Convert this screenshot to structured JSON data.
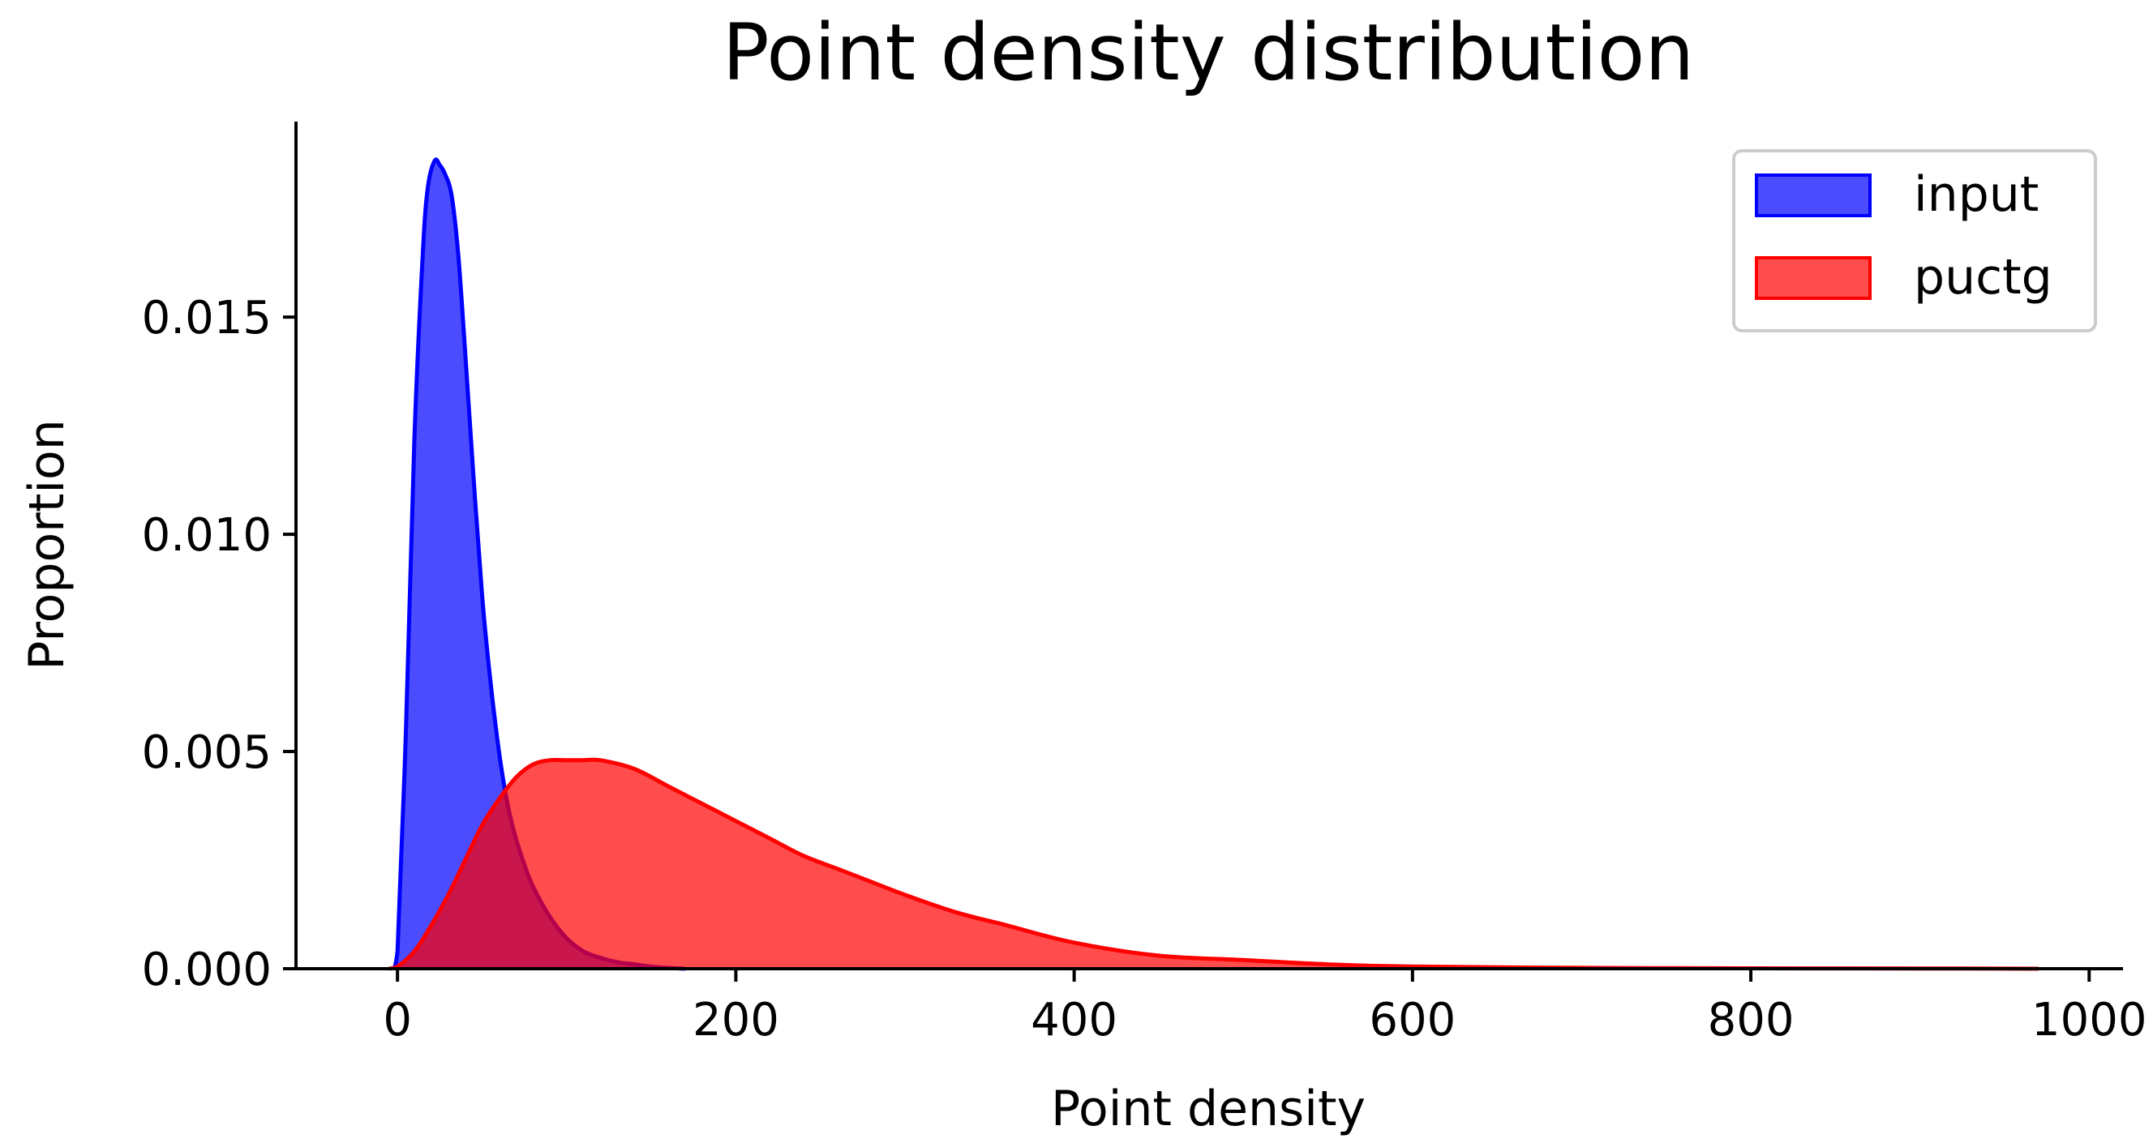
{
  "chart_data": {
    "type": "area",
    "title": "Point density distribution",
    "xlabel": "Point density",
    "ylabel": "Proportion",
    "xlim": [
      -60,
      1020
    ],
    "ylim": [
      0,
      0.0195
    ],
    "x_ticks": [
      0,
      200,
      400,
      600,
      800,
      1000
    ],
    "x_tick_labels": [
      "0",
      "200",
      "400",
      "600",
      "800",
      "1000"
    ],
    "y_ticks": [
      0,
      0.005,
      0.01,
      0.015
    ],
    "y_tick_labels": [
      "0.000",
      "0.005",
      "0.010",
      "0.015"
    ],
    "grid": false,
    "legend_position": "top-right",
    "series": [
      {
        "name": "input",
        "color": "#0000ff",
        "x": [
          -2,
          0,
          5,
          10,
          15,
          18,
          22,
          25,
          28,
          32,
          36,
          40,
          45,
          50,
          55,
          60,
          65,
          70,
          75,
          80,
          90,
          100,
          110,
          120,
          130,
          140,
          150,
          160,
          170
        ],
        "y": [
          0,
          0.0004,
          0.0055,
          0.0122,
          0.0165,
          0.018,
          0.0186,
          0.0185,
          0.0183,
          0.0178,
          0.0164,
          0.0142,
          0.0113,
          0.0086,
          0.0066,
          0.005,
          0.0038,
          0.003,
          0.0024,
          0.0019,
          0.0012,
          0.0007,
          0.0004,
          0.00025,
          0.00015,
          0.0001,
          5e-05,
          2e-05,
          0
        ]
      },
      {
        "name": "puctg",
        "color": "#ff0000",
        "x": [
          -5,
          0,
          10,
          20,
          30,
          40,
          50,
          60,
          70,
          80,
          90,
          100,
          110,
          120,
          140,
          160,
          180,
          200,
          220,
          240,
          260,
          280,
          300,
          330,
          360,
          400,
          450,
          500,
          550,
          600,
          700,
          800,
          900,
          970
        ],
        "y": [
          0,
          5e-05,
          0.0004,
          0.001,
          0.0017,
          0.0025,
          0.0033,
          0.0039,
          0.0044,
          0.0047,
          0.0048,
          0.0048,
          0.0048,
          0.0048,
          0.0046,
          0.0042,
          0.0038,
          0.0034,
          0.003,
          0.0026,
          0.0023,
          0.002,
          0.0017,
          0.0013,
          0.001,
          0.0006,
          0.0003,
          0.0002,
          0.0001,
          5e-05,
          2e-05,
          1e-05,
          5e-06,
          0
        ]
      }
    ]
  }
}
